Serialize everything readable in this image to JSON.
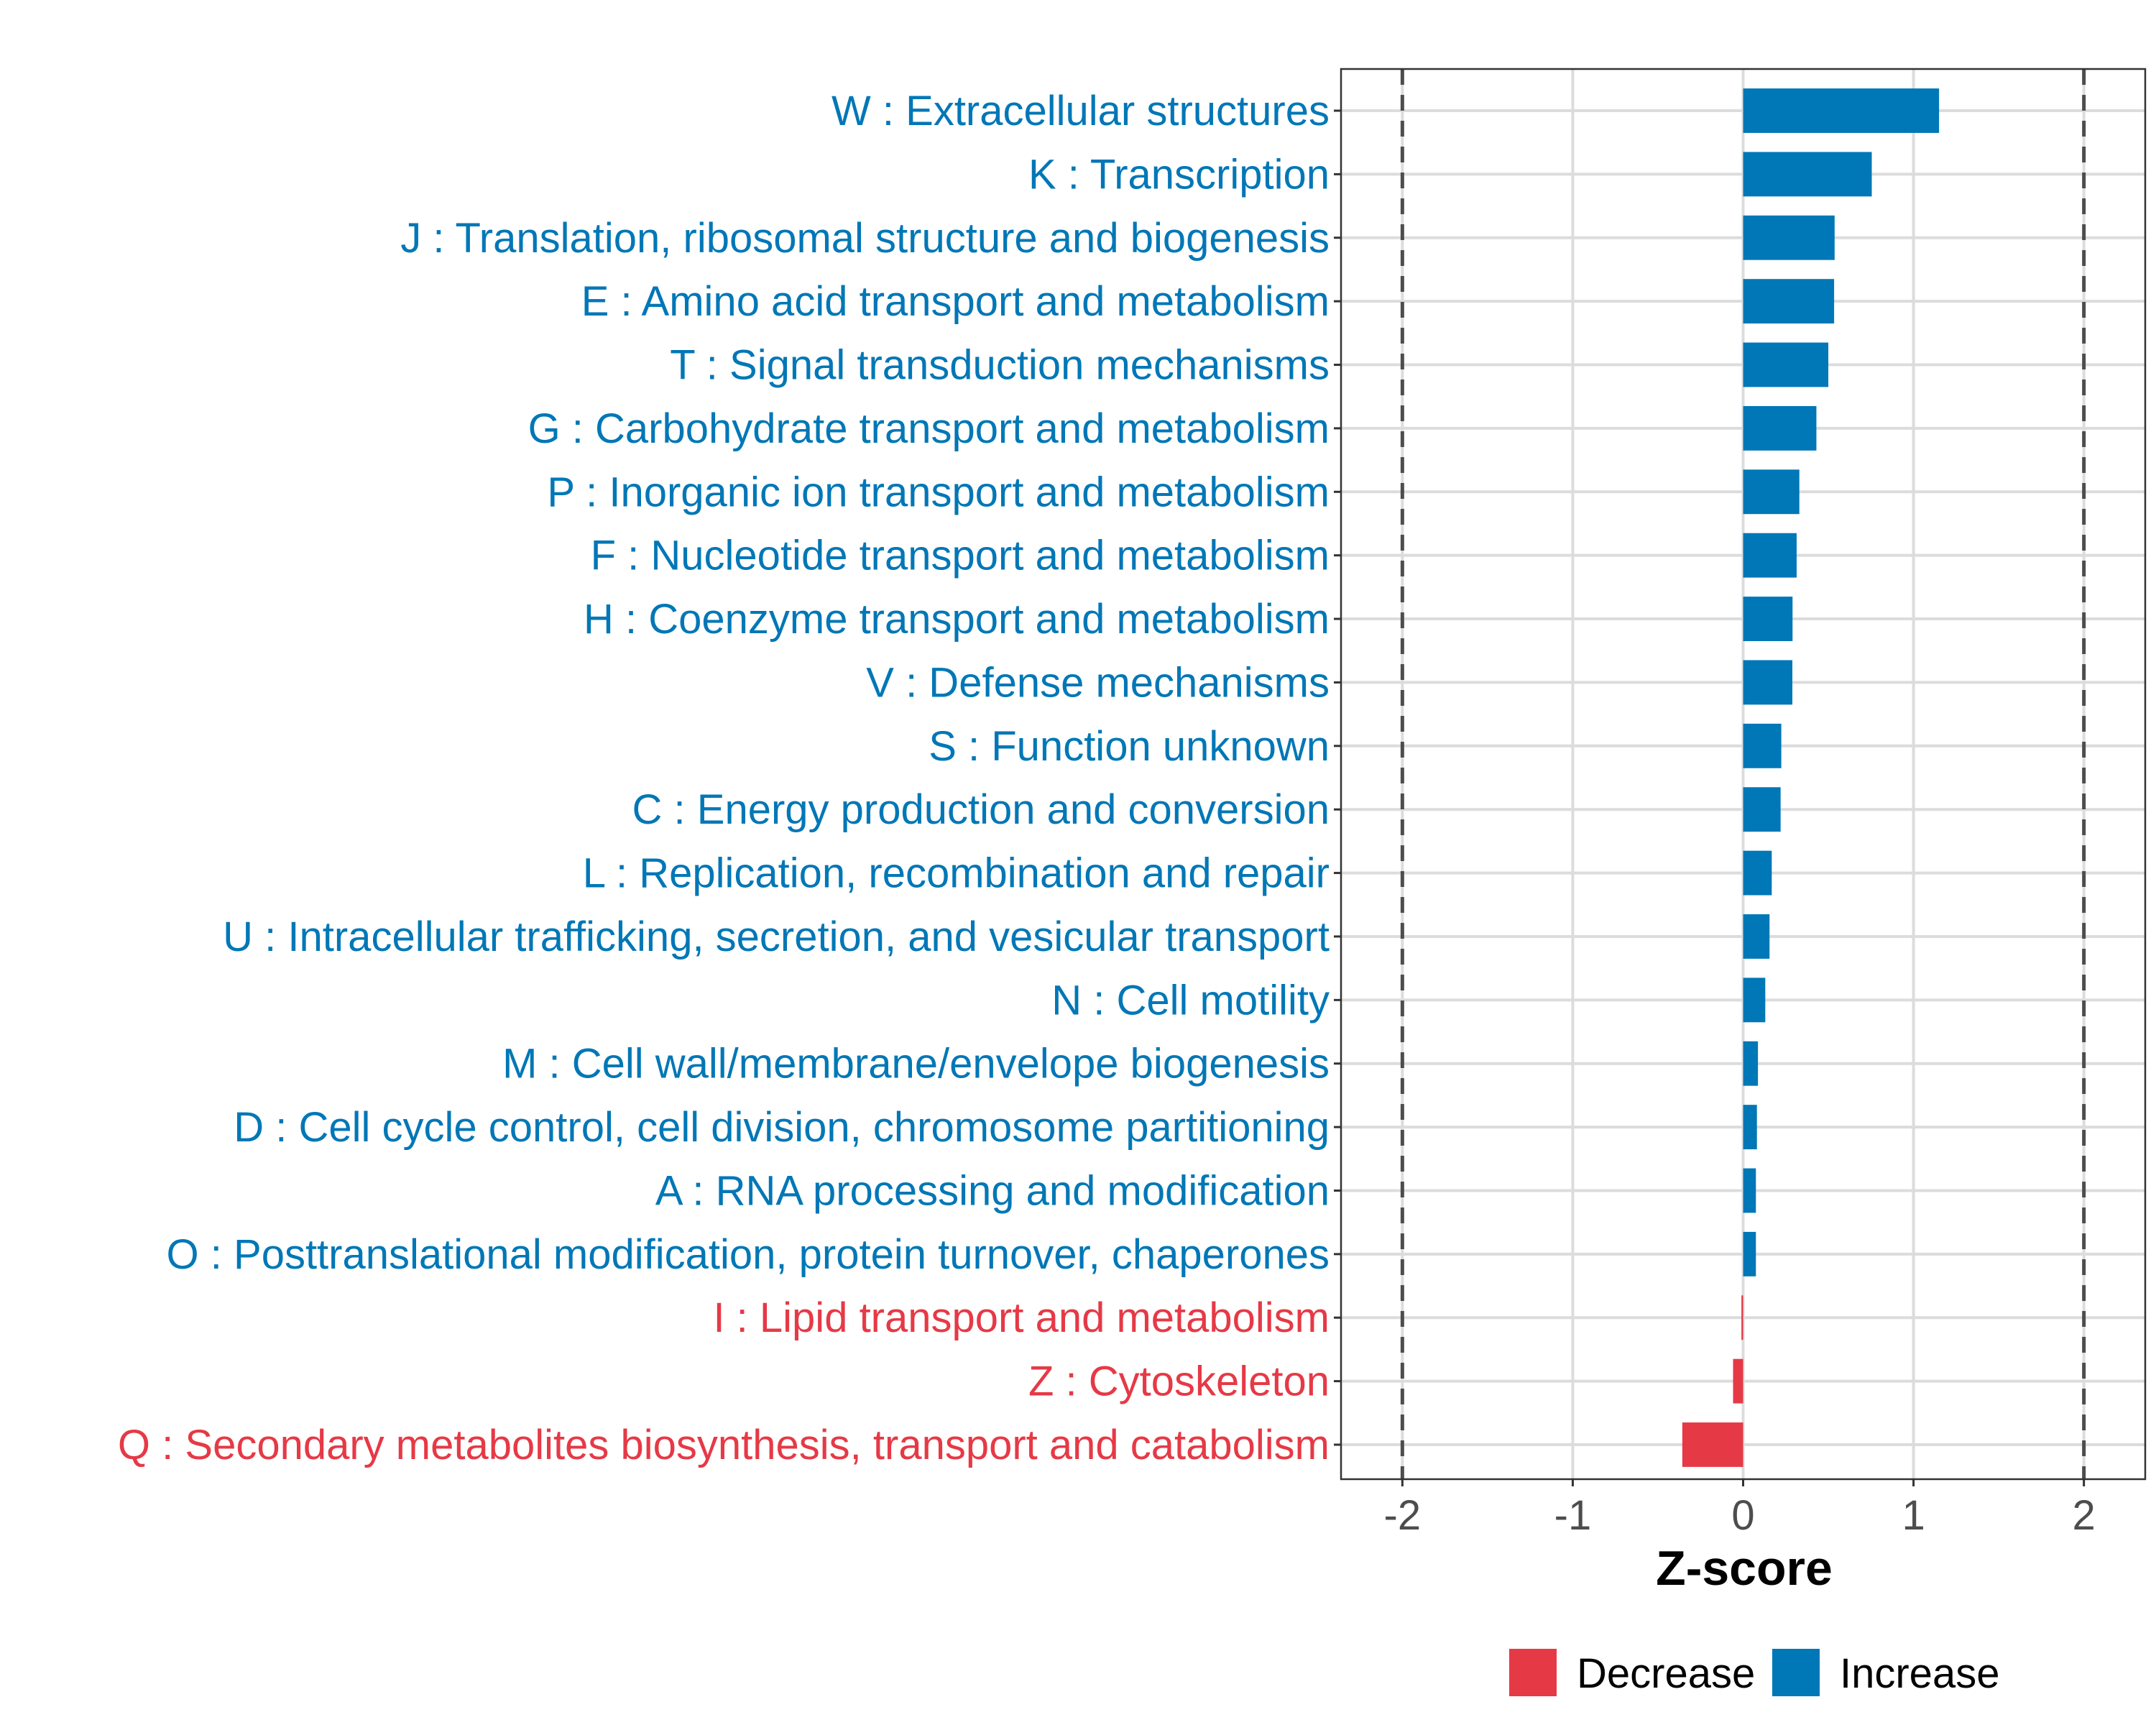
{
  "chart_data": {
    "type": "bar",
    "orientation": "horizontal",
    "xlabel": "Z-score",
    "ylabel": "",
    "xlim": [
      -2.36,
      2.36
    ],
    "xticks": [
      -2,
      -1,
      0,
      1,
      2
    ],
    "xtick_labels": [
      "-2",
      "-1",
      "0",
      "1",
      "2"
    ],
    "reference_lines": [
      -2,
      2
    ],
    "grid": true,
    "legend": {
      "placement": "bottom",
      "entries": [
        {
          "label": "Decrease",
          "color": "#e63946"
        },
        {
          "label": "Increase",
          "color": "#0077b6"
        }
      ]
    },
    "categories": [
      "W : Extracellular structures",
      "K : Transcription",
      "J : Translation, ribosomal structure and biogenesis",
      "E : Amino acid transport and metabolism",
      "T : Signal transduction mechanisms",
      "G : Carbohydrate transport and metabolism",
      "P : Inorganic ion transport and metabolism",
      "F : Nucleotide transport and metabolism",
      "H : Coenzyme transport and metabolism",
      "V : Defense mechanisms",
      "S : Function unknown",
      "C : Energy production and conversion",
      "L : Replication, recombination and repair",
      "U : Intracellular trafficking, secretion, and vesicular transport",
      "N : Cell motility",
      "M : Cell wall/membrane/envelope biogenesis",
      "D : Cell cycle control, cell division, chromosome partitioning",
      "A : RNA processing and modification",
      "O : Posttranslational modification, protein turnover, chaperones",
      "I : Lipid transport and metabolism",
      "Z : Cytoskeleton",
      "Q : Secondary metabolites biosynthesis, transport and catabolism"
    ],
    "values": [
      1.15,
      0.755,
      0.537,
      0.534,
      0.5,
      0.43,
      0.33,
      0.314,
      0.29,
      0.289,
      0.224,
      0.22,
      0.168,
      0.155,
      0.13,
      0.087,
      0.081,
      0.075,
      0.075,
      -0.01,
      -0.059,
      -0.357
    ],
    "colors": {
      "Decrease": "#e63946",
      "Increase": "#0077b6"
    }
  }
}
